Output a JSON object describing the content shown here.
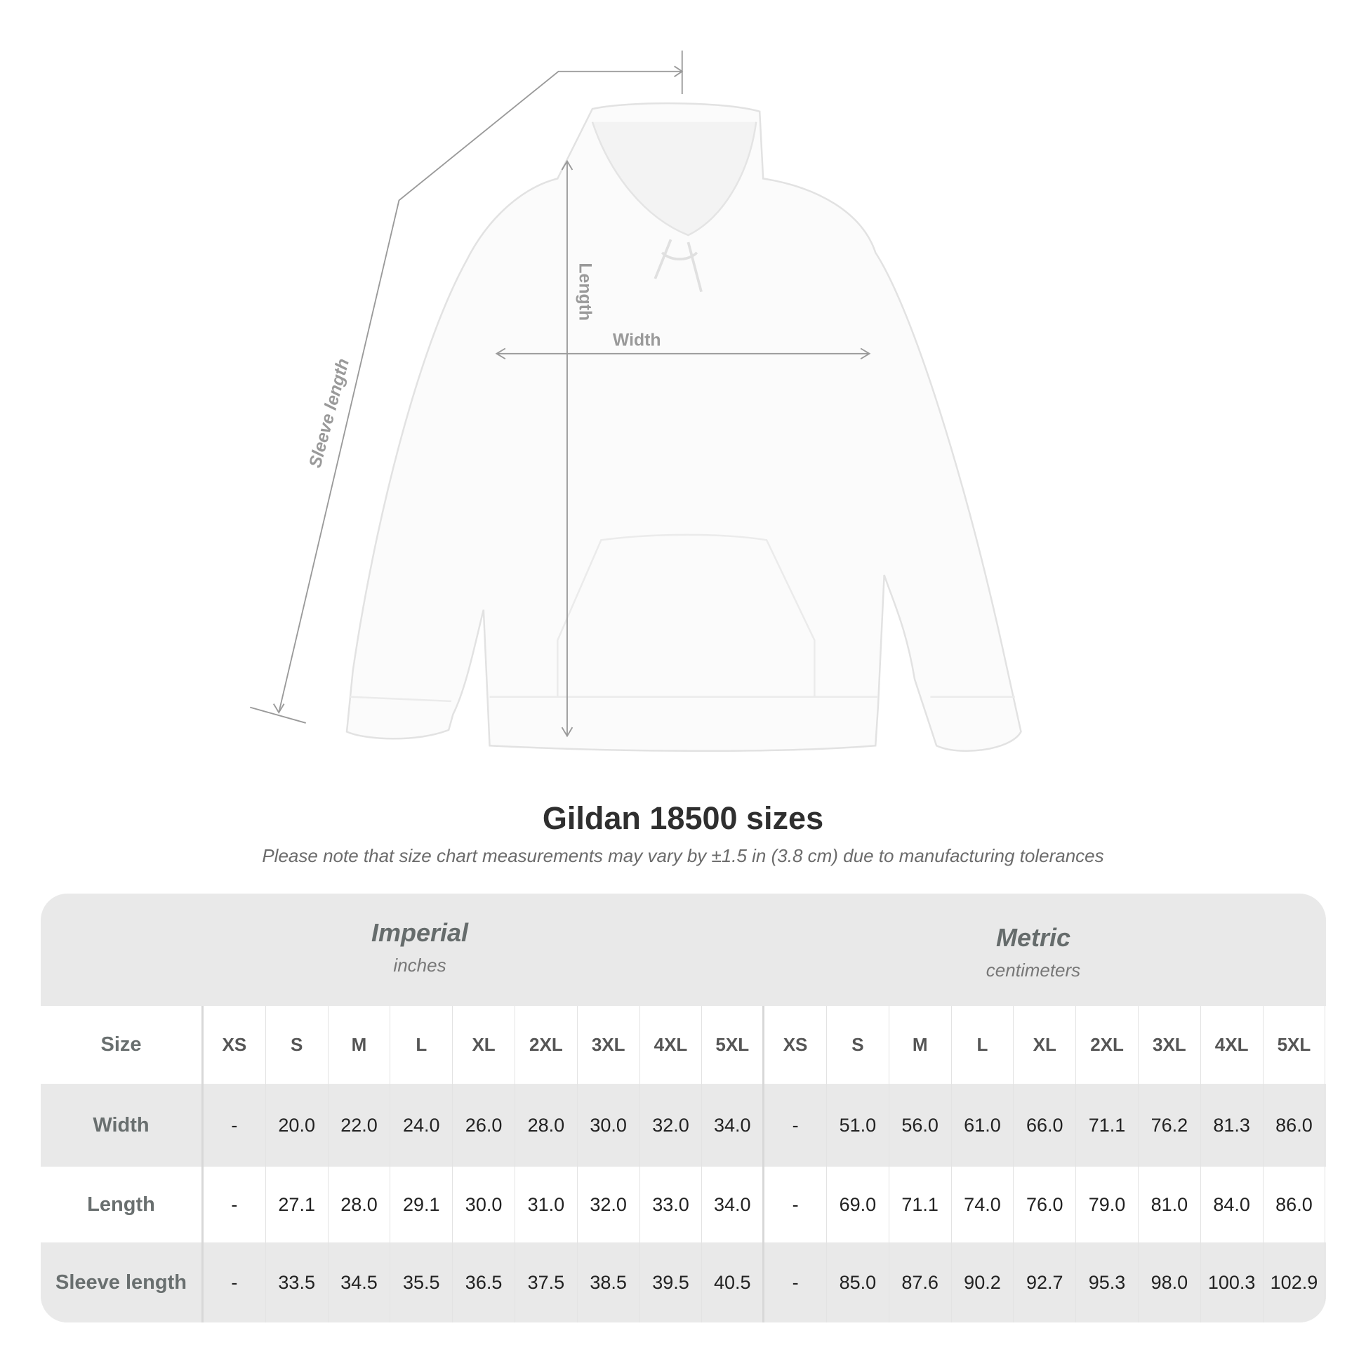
{
  "diagram": {
    "labels": {
      "sleeve_length": "Sleeve length",
      "length": "Length",
      "width": "Width"
    },
    "line_color": "#9a9a9a"
  },
  "title": "Gildan 18500 sizes",
  "note": "Please note that size chart measurements may vary by ±1.5 in (3.8 cm) due to manufacturing tolerances",
  "table": {
    "imperial": {
      "name": "Imperial",
      "unit": "inches"
    },
    "metric": {
      "name": "Metric",
      "unit": "centimeters"
    },
    "size_label": "Size",
    "sizes": [
      "XS",
      "S",
      "M",
      "L",
      "XL",
      "2XL",
      "3XL",
      "4XL",
      "5XL"
    ],
    "rows": [
      {
        "label": "Width",
        "imperial": [
          "-",
          "20.0",
          "22.0",
          "24.0",
          "26.0",
          "28.0",
          "30.0",
          "32.0",
          "34.0"
        ],
        "metric": [
          "-",
          "51.0",
          "56.0",
          "61.0",
          "66.0",
          "71.1",
          "76.2",
          "81.3",
          "86.0"
        ]
      },
      {
        "label": "Length",
        "imperial": [
          "-",
          "27.1",
          "28.0",
          "29.1",
          "30.0",
          "31.0",
          "32.0",
          "33.0",
          "34.0"
        ],
        "metric": [
          "-",
          "69.0",
          "71.1",
          "74.0",
          "76.0",
          "79.0",
          "81.0",
          "84.0",
          "86.0"
        ]
      },
      {
        "label": "Sleeve length",
        "imperial": [
          "-",
          "33.5",
          "34.5",
          "35.5",
          "36.5",
          "37.5",
          "38.5",
          "39.5",
          "40.5"
        ],
        "metric": [
          "-",
          "85.0",
          "87.6",
          "90.2",
          "92.7",
          "95.3",
          "98.0",
          "100.3",
          "102.9"
        ]
      }
    ]
  }
}
